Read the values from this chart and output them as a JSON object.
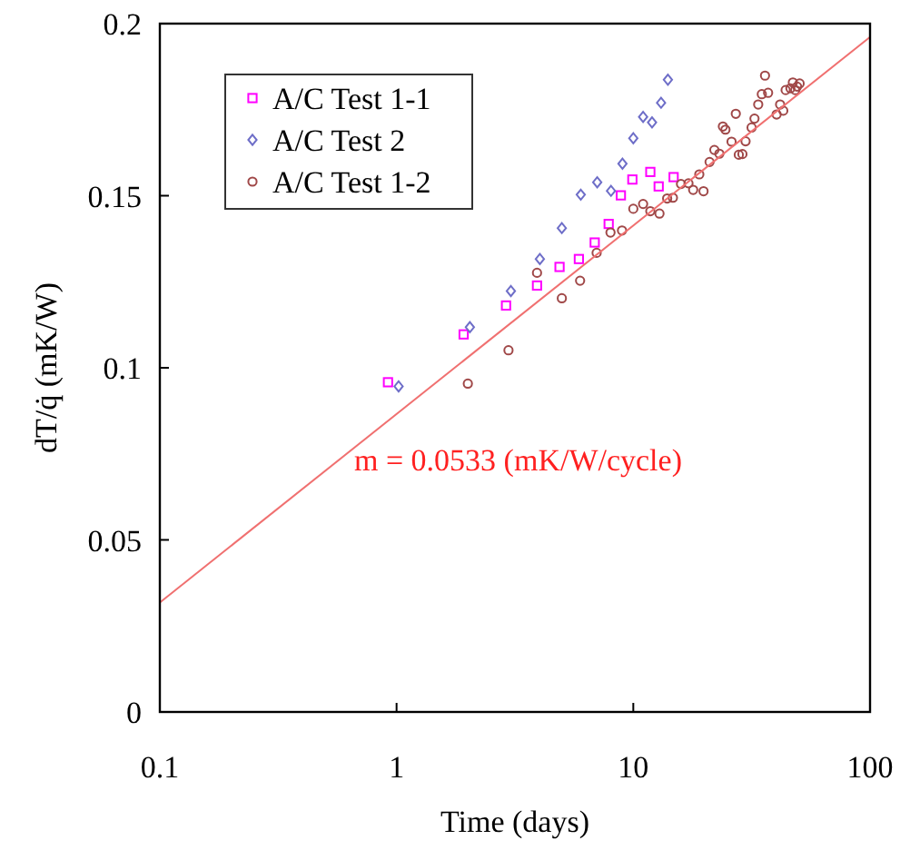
{
  "chart_data": {
    "type": "scatter",
    "xlabel": "Time (days)",
    "ylabel": "dT/q̇ (mK/W)",
    "log": "x",
    "xlim": [
      0.1,
      100
    ],
    "xticks": [
      0.1,
      1,
      10,
      100
    ],
    "ylim": [
      0,
      0.2
    ],
    "yticks": [
      0,
      0.05,
      0.1,
      0.15,
      0.2
    ],
    "grid": false,
    "legend": "top left",
    "annotations": [
      "m = 0.0533 (mK/W/cycle)"
    ],
    "series": [
      {
        "name": "A/C Test 1-1",
        "color": "#ff00ff",
        "marker": "square",
        "x": [
          0.92,
          1.92,
          2.9,
          3.92,
          4.88,
          5.89,
          6.87,
          7.87,
          8.86,
          9.91,
          11.8,
          12.8,
          14.8
        ],
        "values": [
          0.0958,
          0.1097,
          0.1181,
          0.1239,
          0.1293,
          0.1316,
          0.1364,
          0.1418,
          0.1501,
          0.1547,
          0.1569,
          0.1527,
          0.1554
        ]
      },
      {
        "name": "A/C Test 2",
        "color": "#6e6ec8",
        "marker": "diamond",
        "x": [
          1.02,
          2.04,
          3.04,
          4.03,
          4.99,
          6.0,
          7.04,
          8.05,
          9.0,
          10.0,
          11.0,
          12.0,
          13.1,
          14.0
        ],
        "values": [
          0.0946,
          0.1118,
          0.1223,
          0.1316,
          0.1406,
          0.1503,
          0.1539,
          0.1514,
          0.1593,
          0.1667,
          0.1729,
          0.1713,
          0.177,
          0.1837
        ]
      },
      {
        "name": "A/C Test 1-2",
        "color": "#a04848",
        "marker": "circle",
        "x": [
          2.0,
          2.97,
          4.99,
          5.96,
          3.92,
          7.0,
          8.01,
          8.96,
          10.0,
          11.0,
          11.8,
          12.9,
          13.9,
          14.7,
          15.9,
          17.1,
          17.9,
          19.0,
          19.8,
          21.0,
          22.0,
          23.1,
          23.9,
          24.5,
          26.0,
          27.1,
          27.9,
          28.9,
          29.8,
          31.6,
          32.5,
          33.7,
          34.9,
          36.0,
          37.1,
          40.3,
          41.7,
          43.0,
          44.0,
          46.1,
          47.2,
          48.3,
          50.4,
          49.2
        ],
        "values": [
          0.0954,
          0.1051,
          0.1202,
          0.1253,
          0.1276,
          0.1334,
          0.1393,
          0.1399,
          0.1462,
          0.1476,
          0.1455,
          0.1448,
          0.1492,
          0.1494,
          0.1534,
          0.1536,
          0.1517,
          0.1562,
          0.1513,
          0.1598,
          0.1633,
          0.1622,
          0.1701,
          0.1692,
          0.1657,
          0.1738,
          0.1619,
          0.1621,
          0.1658,
          0.1698,
          0.1724,
          0.1765,
          0.1795,
          0.1849,
          0.1799,
          0.1736,
          0.1765,
          0.1747,
          0.1807,
          0.1812,
          0.1829,
          0.1807,
          0.1826,
          0.1817
        ]
      },
      {
        "type": "line",
        "color": "#f07070",
        "marker": "none",
        "x": [
          0.1,
          100
        ],
        "values": [
          0.0318,
          0.1961
        ]
      }
    ]
  }
}
